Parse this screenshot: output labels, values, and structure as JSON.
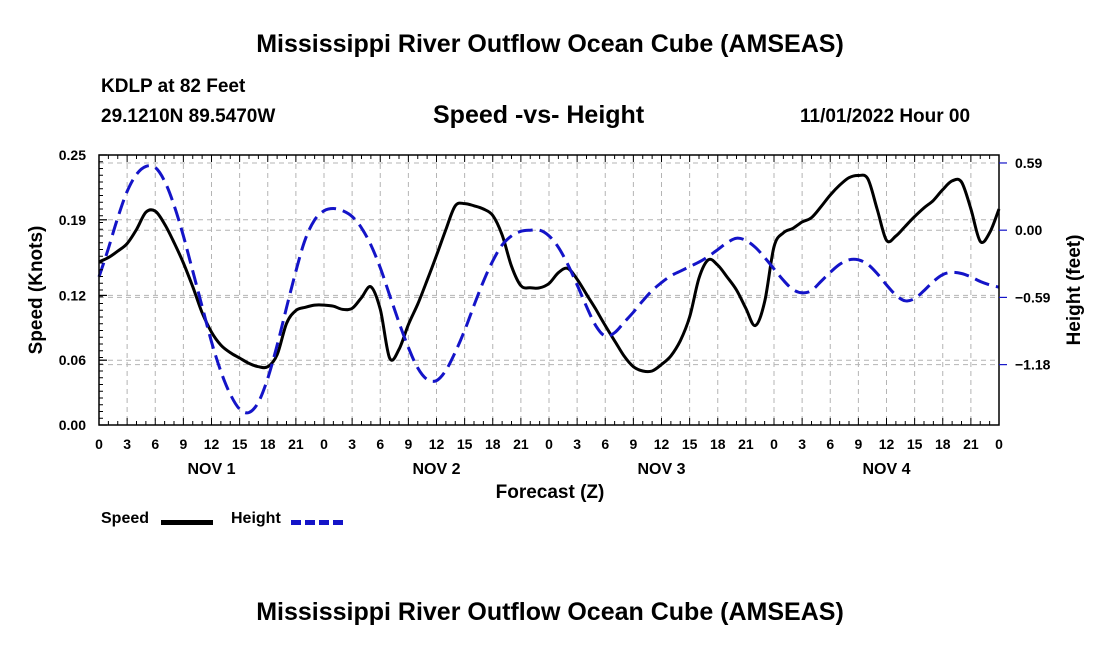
{
  "title": "Mississippi River Outflow Ocean Cube (AMSEAS)",
  "footer_title": "Mississippi River Outflow Ocean Cube (AMSEAS)",
  "station": "KDLP at 82 Feet",
  "coords": "29.1210N  89.5470W",
  "subtitle": "Speed -vs- Height",
  "datetime": "11/01/2022 Hour 00",
  "colors": {
    "speed": "#000000",
    "height": "#1414c8",
    "grid": "#b4b4b4"
  },
  "chart_data": {
    "type": "line",
    "title": "Speed -vs- Height",
    "xlabel": "Forecast (Z)",
    "ylabel": "Speed (Knots)",
    "ylabel_right": "Height (feet)",
    "xlim": [
      0,
      96
    ],
    "ylim": [
      0,
      0.25
    ],
    "ylim_right": [
      -1.71,
      0.66
    ],
    "grid": true,
    "x_ticks": [
      0,
      3,
      6,
      9,
      12,
      15,
      18,
      21,
      24,
      27,
      30,
      33,
      36,
      39,
      42,
      45,
      48,
      51,
      54,
      57,
      60,
      63,
      66,
      69,
      72,
      75,
      78,
      81,
      84,
      87,
      90,
      93,
      96
    ],
    "x_tick_labels": [
      "0",
      "3",
      "6",
      "9",
      "12",
      "15",
      "18",
      "21",
      "0",
      "3",
      "6",
      "9",
      "12",
      "15",
      "18",
      "21",
      "0",
      "3",
      "6",
      "9",
      "12",
      "15",
      "18",
      "21",
      "0",
      "3",
      "6",
      "9",
      "12",
      "15",
      "18",
      "21",
      "0"
    ],
    "day_labels": [
      {
        "x": 12,
        "label": "NOV 1"
      },
      {
        "x": 36,
        "label": "NOV 2"
      },
      {
        "x": 60,
        "label": "NOV 3"
      },
      {
        "x": 84,
        "label": "NOV 4"
      }
    ],
    "y_ticks": [
      0.0,
      0.06,
      0.12,
      0.19,
      0.25
    ],
    "y_tick_labels": [
      "0.00",
      "0.06",
      "0.12",
      "0.19",
      "0.25"
    ],
    "y_right_ticks": [
      0.59,
      0.0,
      -0.59,
      -1.18
    ],
    "y_right_tick_labels": [
      "0.59",
      "0.00",
      "−0.59",
      "−1.18"
    ],
    "series": [
      {
        "name": "Speed",
        "axis": "left",
        "style": "solid",
        "x": [
          0,
          1,
          2,
          3,
          4,
          5,
          6,
          7,
          8,
          9,
          10,
          11,
          12,
          13,
          14,
          15,
          16,
          17,
          18,
          19,
          20,
          21,
          22,
          23,
          24,
          25,
          26,
          27,
          28,
          29,
          30,
          31,
          32,
          33,
          34,
          35,
          36,
          37,
          38,
          39,
          40,
          41,
          42,
          43,
          44,
          45,
          46,
          47,
          48,
          49,
          50,
          51,
          52,
          53,
          54,
          55,
          56,
          57,
          58,
          59,
          60,
          61,
          62,
          63,
          64,
          65,
          66,
          67,
          68,
          69,
          70,
          71,
          72,
          73,
          74,
          75,
          76,
          77,
          78,
          79,
          80,
          81,
          82,
          83,
          84,
          85,
          86,
          87,
          88,
          89,
          90,
          91,
          92,
          93,
          94,
          95,
          96
        ],
        "values": [
          0.151,
          0.155,
          0.161,
          0.168,
          0.181,
          0.197,
          0.198,
          0.186,
          0.169,
          0.15,
          0.128,
          0.104,
          0.086,
          0.074,
          0.067,
          0.062,
          0.057,
          0.054,
          0.054,
          0.065,
          0.094,
          0.106,
          0.109,
          0.111,
          0.111,
          0.11,
          0.107,
          0.108,
          0.118,
          0.128,
          0.107,
          0.062,
          0.07,
          0.093,
          0.112,
          0.134,
          0.157,
          0.181,
          0.203,
          0.205,
          0.203,
          0.2,
          0.194,
          0.176,
          0.147,
          0.129,
          0.127,
          0.127,
          0.131,
          0.141,
          0.145,
          0.135,
          0.121,
          0.107,
          0.092,
          0.078,
          0.064,
          0.054,
          0.05,
          0.05,
          0.056,
          0.064,
          0.078,
          0.1,
          0.136,
          0.153,
          0.148,
          0.137,
          0.125,
          0.108,
          0.092,
          0.114,
          0.165,
          0.178,
          0.182,
          0.188,
          0.192,
          0.202,
          0.213,
          0.222,
          0.229,
          0.231,
          0.228,
          0.2,
          0.171,
          0.175,
          0.184,
          0.193,
          0.201,
          0.208,
          0.218,
          0.226,
          0.225,
          0.2,
          0.17,
          0.178,
          0.2
        ]
      },
      {
        "name": "Height",
        "axis": "right",
        "style": "dashed",
        "x": [
          0,
          1,
          2,
          3,
          4,
          5,
          6,
          7,
          8,
          9,
          10,
          11,
          12,
          13,
          14,
          15,
          16,
          17,
          18,
          19,
          20,
          21,
          22,
          23,
          24,
          25,
          26,
          27,
          28,
          29,
          30,
          31,
          32,
          33,
          34,
          35,
          36,
          37,
          38,
          39,
          40,
          41,
          42,
          43,
          44,
          45,
          46,
          47,
          48,
          49,
          50,
          51,
          52,
          53,
          54,
          55,
          56,
          57,
          58,
          59,
          60,
          61,
          62,
          63,
          64,
          65,
          66,
          67,
          68,
          69,
          70,
          71,
          72,
          73,
          74,
          75,
          76,
          77,
          78,
          79,
          80,
          81,
          82,
          83,
          84,
          85,
          86,
          87,
          88,
          89,
          90,
          91,
          92,
          93,
          94,
          95,
          96
        ],
        "values": [
          -0.41,
          -0.16,
          0.11,
          0.34,
          0.49,
          0.56,
          0.55,
          0.43,
          0.22,
          -0.05,
          -0.36,
          -0.67,
          -0.98,
          -1.24,
          -1.44,
          -1.57,
          -1.6,
          -1.51,
          -1.3,
          -1.01,
          -0.68,
          -0.36,
          -0.08,
          0.09,
          0.17,
          0.19,
          0.17,
          0.12,
          0.02,
          -0.13,
          -0.33,
          -0.57,
          -0.81,
          -1.03,
          -1.21,
          -1.31,
          -1.32,
          -1.23,
          -1.07,
          -0.88,
          -0.66,
          -0.45,
          -0.27,
          -0.13,
          -0.05,
          -0.01,
          0.0,
          0.0,
          -0.05,
          -0.15,
          -0.3,
          -0.48,
          -0.67,
          -0.84,
          -0.93,
          -0.9,
          -0.81,
          -0.72,
          -0.62,
          -0.53,
          -0.46,
          -0.4,
          -0.36,
          -0.32,
          -0.28,
          -0.23,
          -0.17,
          -0.11,
          -0.07,
          -0.09,
          -0.15,
          -0.24,
          -0.34,
          -0.44,
          -0.52,
          -0.55,
          -0.53,
          -0.45,
          -0.37,
          -0.3,
          -0.26,
          -0.26,
          -0.3,
          -0.38,
          -0.48,
          -0.57,
          -0.62,
          -0.6,
          -0.53,
          -0.45,
          -0.39,
          -0.37,
          -0.38,
          -0.41,
          -0.45,
          -0.48,
          -0.5
        ]
      }
    ]
  },
  "legend": {
    "speed_label": "Speed",
    "height_label": "Height"
  }
}
